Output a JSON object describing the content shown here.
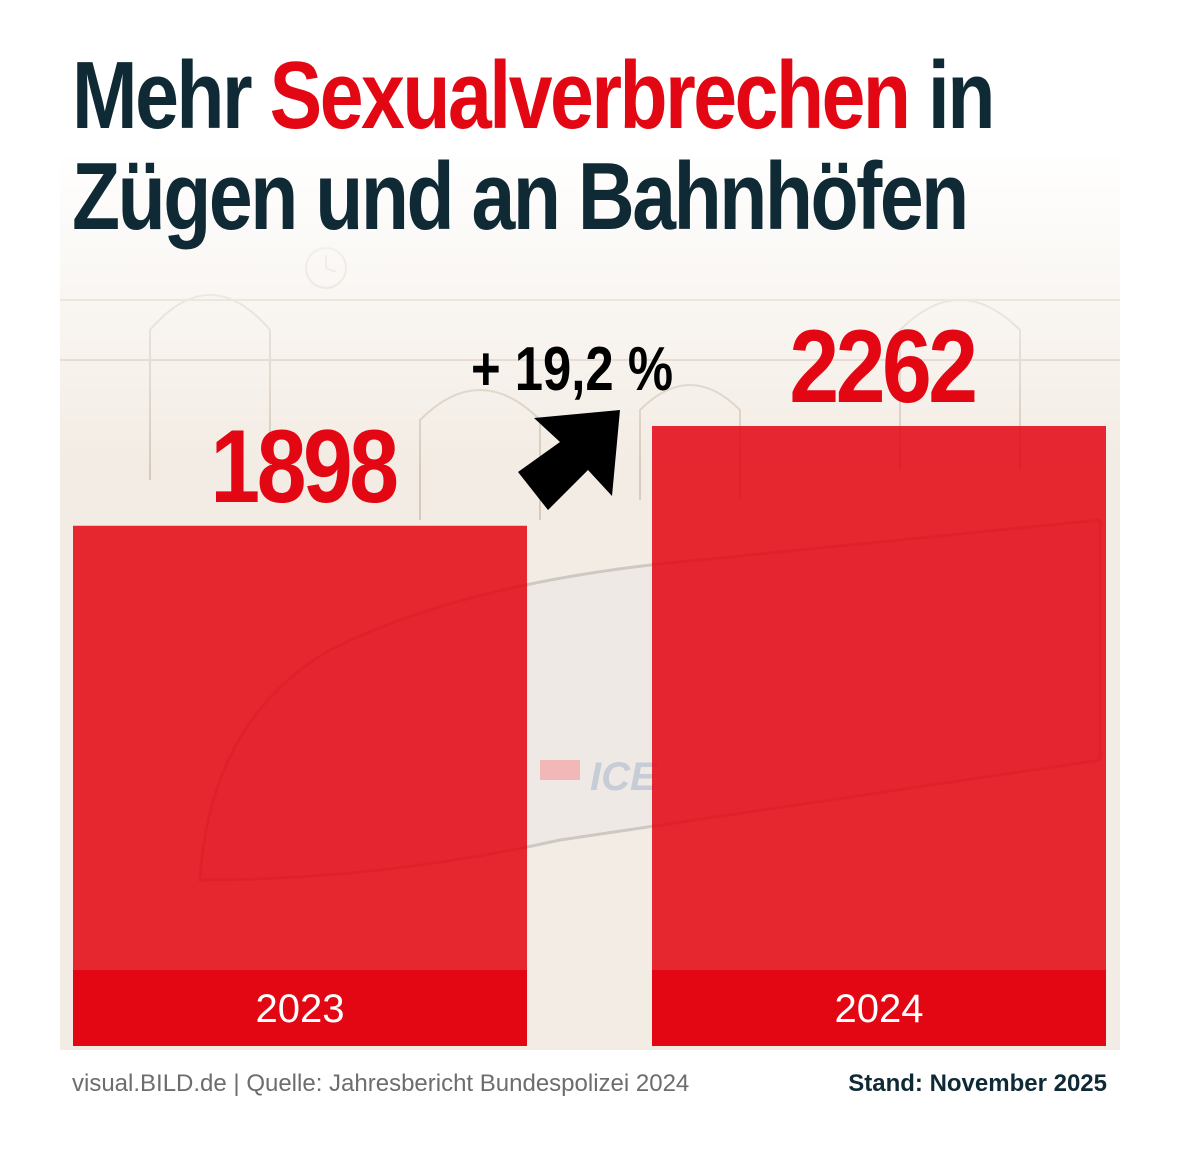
{
  "title": {
    "part1": "Mehr ",
    "accent": "Sexualverbrechen",
    "part2": " in",
    "line2": "Zügen und an Bahnhöfen"
  },
  "chart_data": {
    "type": "bar",
    "categories": [
      "2023",
      "2024"
    ],
    "values": [
      1898,
      2262
    ],
    "value_labels": [
      "1898",
      "2262"
    ],
    "change_label": "+ 19,2 %",
    "ylim": [
      0,
      2700
    ],
    "grid": false,
    "colors": {
      "bar": "#e30613",
      "bar_label_band": "#e30613",
      "value_text": "#e30613",
      "change_text": "#000000"
    }
  },
  "footer": {
    "source": "visual.BILD.de | Quelle: Jahresbericht Bundespolizei 2024",
    "status": "Stand: November 2025"
  },
  "colors": {
    "title_dark": "#0f2a35",
    "title_accent": "#e30613"
  }
}
